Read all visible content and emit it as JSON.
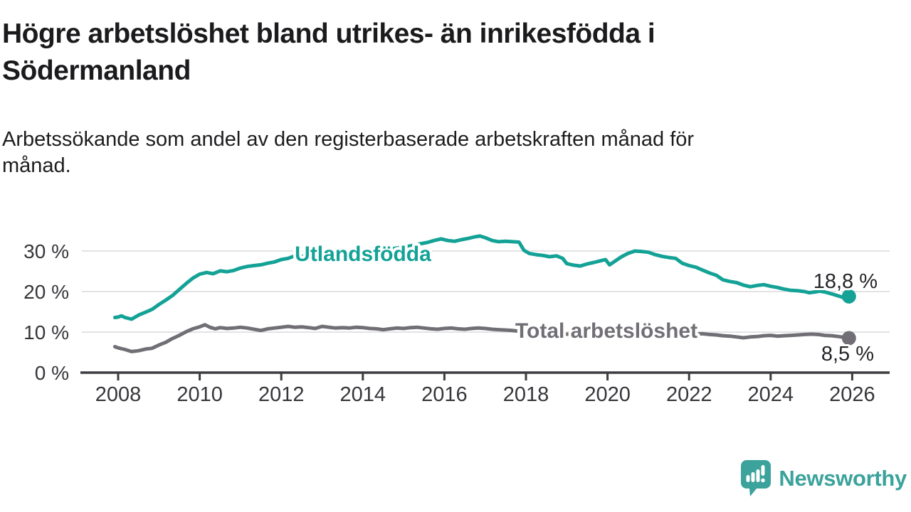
{
  "header": {
    "title_line1": "Högre arbetslöshet bland utrikes- än inrikesfödda i",
    "title_line2": "Södermanland",
    "subtitle_line1": "Arbetssökande som andel av den registerbaserade arbetskraften månad för",
    "subtitle_line2": "månad."
  },
  "chart_data": {
    "type": "line",
    "title": "Högre arbetslöshet bland utrikes- än inrikesfödda i Södermanland",
    "subtitle": "Arbetssökande som andel av den registerbaserade arbetskraften månad för månad.",
    "legend_position": "inline-labels-on-lines",
    "grid": "horizontal-only",
    "x_axis": {
      "tick_years": [
        2008,
        2010,
        2012,
        2014,
        2016,
        2018,
        2020,
        2022,
        2024,
        2026
      ],
      "min": 2007.75,
      "max": 2026.9
    },
    "y_axis": {
      "unit": "%",
      "min": 0,
      "max": 35,
      "gridlines": [
        10,
        20,
        30
      ],
      "ticks": [
        {
          "v": 0,
          "label": "0 %"
        },
        {
          "v": 10,
          "label": "10 %"
        },
        {
          "v": 20,
          "label": "20 %"
        },
        {
          "v": 30,
          "label": "30 %"
        }
      ]
    },
    "series": [
      {
        "name": "Utlandsfödda",
        "color": "#14a296",
        "end_label": "18,8 %",
        "end_value": 18.8,
        "points": [
          [
            2007.92,
            13.6
          ],
          [
            2008.0,
            13.7
          ],
          [
            2008.08,
            14.0
          ],
          [
            2008.17,
            13.6
          ],
          [
            2008.33,
            13.2
          ],
          [
            2008.5,
            14.2
          ],
          [
            2008.67,
            14.9
          ],
          [
            2008.83,
            15.6
          ],
          [
            2009.0,
            16.8
          ],
          [
            2009.17,
            17.9
          ],
          [
            2009.33,
            19.0
          ],
          [
            2009.5,
            20.5
          ],
          [
            2009.67,
            22.0
          ],
          [
            2009.83,
            23.3
          ],
          [
            2010.0,
            24.3
          ],
          [
            2010.17,
            24.7
          ],
          [
            2010.33,
            24.4
          ],
          [
            2010.5,
            25.1
          ],
          [
            2010.67,
            24.9
          ],
          [
            2010.83,
            25.2
          ],
          [
            2011.0,
            25.8
          ],
          [
            2011.17,
            26.2
          ],
          [
            2011.33,
            26.4
          ],
          [
            2011.5,
            26.6
          ],
          [
            2011.67,
            27.0
          ],
          [
            2011.83,
            27.3
          ],
          [
            2012.0,
            27.9
          ],
          [
            2012.17,
            28.2
          ],
          [
            2012.33,
            28.8
          ],
          [
            2012.45,
            29.1
          ],
          [
            2012.58,
            28.2
          ],
          [
            2012.75,
            28.6
          ],
          [
            2012.92,
            28.4
          ],
          [
            2013.08,
            28.7
          ],
          [
            2013.25,
            28.9
          ],
          [
            2013.42,
            29.1
          ],
          [
            2013.58,
            29.0
          ],
          [
            2013.75,
            29.3
          ],
          [
            2013.92,
            29.6
          ],
          [
            2014.08,
            29.8
          ],
          [
            2014.25,
            30.0
          ],
          [
            2014.42,
            30.3
          ],
          [
            2014.58,
            30.2
          ],
          [
            2014.75,
            30.6
          ],
          [
            2014.92,
            30.9
          ],
          [
            2015.08,
            31.1
          ],
          [
            2015.25,
            31.4
          ],
          [
            2015.42,
            31.8
          ],
          [
            2015.58,
            32.1
          ],
          [
            2015.75,
            32.6
          ],
          [
            2015.92,
            33.0
          ],
          [
            2016.08,
            32.6
          ],
          [
            2016.25,
            32.4
          ],
          [
            2016.42,
            32.8
          ],
          [
            2016.58,
            33.1
          ],
          [
            2016.75,
            33.5
          ],
          [
            2016.87,
            33.7
          ],
          [
            2017.0,
            33.3
          ],
          [
            2017.17,
            32.6
          ],
          [
            2017.33,
            32.3
          ],
          [
            2017.5,
            32.4
          ],
          [
            2017.67,
            32.3
          ],
          [
            2017.83,
            32.2
          ],
          [
            2017.95,
            30.2
          ],
          [
            2018.08,
            29.4
          ],
          [
            2018.25,
            29.1
          ],
          [
            2018.42,
            28.9
          ],
          [
            2018.58,
            28.6
          ],
          [
            2018.75,
            28.8
          ],
          [
            2018.9,
            28.2
          ],
          [
            2019.0,
            26.9
          ],
          [
            2019.17,
            26.5
          ],
          [
            2019.33,
            26.3
          ],
          [
            2019.5,
            26.8
          ],
          [
            2019.67,
            27.2
          ],
          [
            2019.83,
            27.6
          ],
          [
            2019.95,
            27.9
          ],
          [
            2020.05,
            26.6
          ],
          [
            2020.17,
            27.4
          ],
          [
            2020.33,
            28.5
          ],
          [
            2020.5,
            29.4
          ],
          [
            2020.67,
            30.0
          ],
          [
            2020.83,
            29.9
          ],
          [
            2021.0,
            29.7
          ],
          [
            2021.17,
            29.1
          ],
          [
            2021.33,
            28.7
          ],
          [
            2021.5,
            28.4
          ],
          [
            2021.67,
            28.2
          ],
          [
            2021.83,
            27.0
          ],
          [
            2022.0,
            26.4
          ],
          [
            2022.17,
            26.0
          ],
          [
            2022.33,
            25.3
          ],
          [
            2022.5,
            24.6
          ],
          [
            2022.67,
            24.0
          ],
          [
            2022.83,
            22.9
          ],
          [
            2023.0,
            22.5
          ],
          [
            2023.17,
            22.2
          ],
          [
            2023.33,
            21.6
          ],
          [
            2023.5,
            21.2
          ],
          [
            2023.67,
            21.5
          ],
          [
            2023.83,
            21.7
          ],
          [
            2024.0,
            21.3
          ],
          [
            2024.17,
            21.0
          ],
          [
            2024.33,
            20.6
          ],
          [
            2024.5,
            20.3
          ],
          [
            2024.67,
            20.2
          ],
          [
            2024.83,
            20.0
          ],
          [
            2024.95,
            19.7
          ],
          [
            2025.08,
            19.9
          ],
          [
            2025.2,
            20.1
          ],
          [
            2025.33,
            19.9
          ],
          [
            2025.5,
            19.4
          ],
          [
            2025.67,
            18.9
          ],
          [
            2025.8,
            18.5
          ],
          [
            2025.92,
            18.8
          ]
        ]
      },
      {
        "name": "Total arbetslöshet",
        "color": "#716f75",
        "end_label": "8,5 %",
        "end_value": 8.5,
        "points": [
          [
            2007.92,
            6.4
          ],
          [
            2008.0,
            6.1
          ],
          [
            2008.17,
            5.7
          ],
          [
            2008.33,
            5.2
          ],
          [
            2008.5,
            5.4
          ],
          [
            2008.67,
            5.8
          ],
          [
            2008.83,
            6.0
          ],
          [
            2009.0,
            6.8
          ],
          [
            2009.17,
            7.5
          ],
          [
            2009.33,
            8.4
          ],
          [
            2009.5,
            9.2
          ],
          [
            2009.67,
            10.1
          ],
          [
            2009.83,
            10.8
          ],
          [
            2010.0,
            11.3
          ],
          [
            2010.13,
            11.8
          ],
          [
            2010.25,
            11.2
          ],
          [
            2010.38,
            10.8
          ],
          [
            2010.5,
            11.1
          ],
          [
            2010.67,
            10.9
          ],
          [
            2010.83,
            11.0
          ],
          [
            2011.0,
            11.2
          ],
          [
            2011.17,
            11.0
          ],
          [
            2011.33,
            10.7
          ],
          [
            2011.5,
            10.4
          ],
          [
            2011.67,
            10.8
          ],
          [
            2011.83,
            11.0
          ],
          [
            2012.0,
            11.2
          ],
          [
            2012.17,
            11.4
          ],
          [
            2012.33,
            11.2
          ],
          [
            2012.5,
            11.3
          ],
          [
            2012.67,
            11.1
          ],
          [
            2012.83,
            10.9
          ],
          [
            2013.0,
            11.4
          ],
          [
            2013.17,
            11.2
          ],
          [
            2013.33,
            11.0
          ],
          [
            2013.5,
            11.1
          ],
          [
            2013.67,
            11.0
          ],
          [
            2013.83,
            11.2
          ],
          [
            2014.0,
            11.1
          ],
          [
            2014.17,
            10.9
          ],
          [
            2014.33,
            10.8
          ],
          [
            2014.5,
            10.6
          ],
          [
            2014.67,
            10.8
          ],
          [
            2014.83,
            11.0
          ],
          [
            2015.0,
            10.9
          ],
          [
            2015.17,
            11.1
          ],
          [
            2015.33,
            11.2
          ],
          [
            2015.5,
            11.0
          ],
          [
            2015.67,
            10.8
          ],
          [
            2015.83,
            10.7
          ],
          [
            2016.0,
            10.9
          ],
          [
            2016.17,
            11.0
          ],
          [
            2016.33,
            10.8
          ],
          [
            2016.5,
            10.7
          ],
          [
            2016.67,
            10.9
          ],
          [
            2016.83,
            11.0
          ],
          [
            2017.0,
            10.9
          ],
          [
            2017.17,
            10.7
          ],
          [
            2017.33,
            10.6
          ],
          [
            2017.5,
            10.5
          ],
          [
            2017.67,
            10.4
          ],
          [
            2017.83,
            10.2
          ],
          [
            2018.0,
            10.1
          ],
          [
            2018.25,
            10.0
          ],
          [
            2018.5,
            9.8
          ],
          [
            2018.75,
            9.7
          ],
          [
            2019.0,
            9.5
          ],
          [
            2019.25,
            9.4
          ],
          [
            2019.5,
            9.4
          ],
          [
            2019.75,
            9.5
          ],
          [
            2020.0,
            9.8
          ],
          [
            2020.25,
            10.1
          ],
          [
            2020.5,
            10.3
          ],
          [
            2020.75,
            10.2
          ],
          [
            2021.0,
            10.0
          ],
          [
            2021.25,
            9.7
          ],
          [
            2021.5,
            9.5
          ],
          [
            2021.75,
            9.4
          ],
          [
            2022.0,
            9.3
          ],
          [
            2022.17,
            9.5
          ],
          [
            2022.33,
            9.6
          ],
          [
            2022.5,
            9.4
          ],
          [
            2022.67,
            9.3
          ],
          [
            2022.83,
            9.1
          ],
          [
            2023.0,
            9.0
          ],
          [
            2023.17,
            8.8
          ],
          [
            2023.33,
            8.6
          ],
          [
            2023.5,
            8.8
          ],
          [
            2023.67,
            8.9
          ],
          [
            2023.83,
            9.1
          ],
          [
            2024.0,
            9.2
          ],
          [
            2024.17,
            9.0
          ],
          [
            2024.33,
            9.1
          ],
          [
            2024.5,
            9.2
          ],
          [
            2024.67,
            9.3
          ],
          [
            2024.83,
            9.4
          ],
          [
            2025.0,
            9.5
          ],
          [
            2025.17,
            9.4
          ],
          [
            2025.33,
            9.2
          ],
          [
            2025.5,
            9.1
          ],
          [
            2025.67,
            8.9
          ],
          [
            2025.8,
            8.7
          ],
          [
            2025.92,
            8.5
          ]
        ]
      }
    ]
  },
  "branding": {
    "logo_text": "Newsworthy",
    "logo_color": "#3ba29c",
    "logo_icon": "newsworthy-speech-bubble-bar-chart-icon"
  }
}
